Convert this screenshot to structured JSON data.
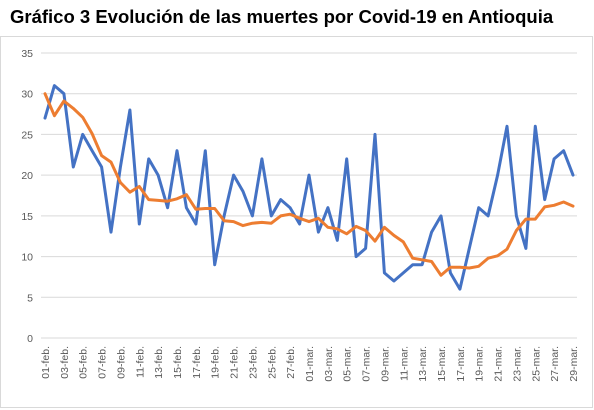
{
  "title": "Gráfico 3 Evolución de las muertes por Covid-19 en Antioquia",
  "chart_data": {
    "type": "line",
    "title": "Gráfico 3 Evolución de las muertes por Covid-19 en Antioquia",
    "xlabel": "",
    "ylabel": "",
    "ylim": [
      0,
      35
    ],
    "yticks": [
      0,
      5,
      10,
      15,
      20,
      25,
      30,
      35
    ],
    "grid": true,
    "legend": "none",
    "x": [
      "01-feb.",
      "02-feb.",
      "03-feb.",
      "04-feb.",
      "05-feb.",
      "06-feb.",
      "07-feb.",
      "08-feb.",
      "09-feb.",
      "10-feb.",
      "11-feb.",
      "12-feb.",
      "13-feb.",
      "14-feb.",
      "15-feb.",
      "16-feb.",
      "17-feb.",
      "18-feb.",
      "19-feb.",
      "20-feb.",
      "21-feb.",
      "22-feb.",
      "23-feb.",
      "24-feb.",
      "25-feb.",
      "26-feb.",
      "27-feb.",
      "28-feb.",
      "01-mar.",
      "02-mar.",
      "03-mar.",
      "04-mar.",
      "05-mar.",
      "06-mar.",
      "07-mar.",
      "08-mar.",
      "09-mar.",
      "10-mar.",
      "11-mar.",
      "12-mar.",
      "13-mar.",
      "14-mar.",
      "15-mar.",
      "16-mar.",
      "17-mar.",
      "18-mar.",
      "19-mar.",
      "20-mar.",
      "21-mar.",
      "22-mar.",
      "23-mar.",
      "24-mar.",
      "25-mar.",
      "26-mar.",
      "27-mar.",
      "28-mar.",
      "29-mar."
    ],
    "xtick_labels": [
      "01-feb.",
      "03-feb.",
      "05-feb.",
      "07-feb.",
      "09-feb.",
      "11-feb.",
      "13-feb.",
      "15-feb.",
      "17-feb.",
      "19-feb.",
      "21-feb.",
      "23-feb.",
      "25-feb.",
      "27-feb.",
      "01-mar.",
      "03-mar.",
      "05-mar.",
      "07-mar.",
      "09-mar.",
      "11-mar.",
      "13-mar.",
      "15-mar.",
      "17-mar.",
      "19-mar.",
      "21-mar.",
      "23-mar.",
      "25-mar.",
      "27-mar.",
      "29-mar."
    ],
    "series": [
      {
        "color": "#4472c4",
        "values": [
          27,
          31,
          30,
          21,
          25,
          23,
          21,
          13,
          21,
          28,
          14,
          22,
          20,
          16,
          23,
          16,
          14,
          23,
          9,
          15,
          20,
          18,
          15,
          22,
          15,
          17,
          16,
          14,
          20,
          13,
          16,
          12,
          22,
          10,
          11,
          25,
          8,
          7,
          8,
          9,
          9,
          13,
          15,
          8,
          6,
          11,
          16,
          15,
          20,
          26,
          15,
          11,
          26,
          17,
          22,
          23,
          20
        ]
      },
      {
        "color": "#ed7d31",
        "values": [
          30,
          27.3,
          29.1,
          28.2,
          27.1,
          25.1,
          22.4,
          21.6,
          19.1,
          17.9,
          18.6,
          17,
          16.9,
          16.8,
          17.1,
          17.6,
          15.8,
          15.9,
          15.9,
          14.4,
          14.3,
          13.8,
          14.1,
          14.2,
          14.1,
          15,
          15.2,
          14.7,
          14.3,
          14.7,
          13.6,
          13.4,
          12.8,
          13.7,
          13.2,
          11.9,
          13.6,
          12.6,
          11.8,
          9.8,
          9.6,
          9.4,
          7.7,
          8.7,
          8.7,
          8.6,
          8.8,
          9.8,
          10.1,
          10.9,
          13.2,
          14.6,
          14.6,
          16.1,
          16.3,
          16.7,
          16.2
        ]
      }
    ]
  }
}
